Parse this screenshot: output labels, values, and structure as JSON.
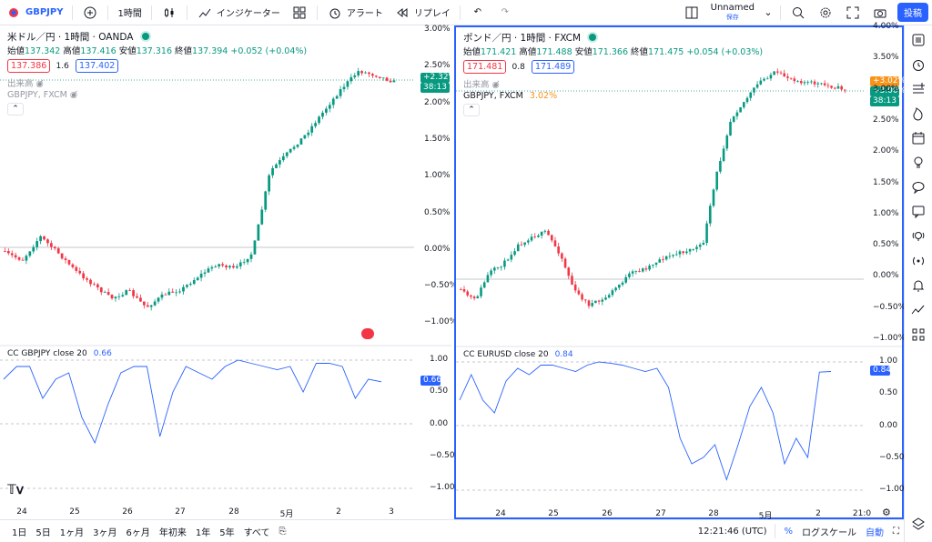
{
  "toolbar": {
    "symbol": "GBPJPY",
    "interval": "1時間",
    "indicators": "インジケーター",
    "alert": "アラート",
    "replay": "リプレイ",
    "layout_name": "Unnamed",
    "layout_saved": "保存",
    "publish": "投稿"
  },
  "left": {
    "title": "米ドル／円 · 1時間 · OANDA",
    "o_lbl": "始値",
    "o": "137.342",
    "h_lbl": "高値",
    "h": "137.416",
    "l_lbl": "安値",
    "l": "137.316",
    "c_lbl": "終値",
    "c": "137.394",
    "chg": "+0.052 (+0.04%)",
    "bid": "137.386",
    "spread": "1.6",
    "ask": "137.402",
    "volume": "出来高",
    "compare": "GBPJPY, FXCM",
    "price_tag": "+2.32%",
    "price_timer": "38:13",
    "yticks": [
      "3.00%",
      "2.50%",
      "2.00%",
      "1.50%",
      "1.00%",
      "0.50%",
      "0.00%",
      "−0.50%",
      "−1.00%"
    ],
    "ind_title": "CC GBPJPY close 20",
    "ind_val": "0.66",
    "ind_ticks": [
      "1.00",
      "0.50",
      "0.00",
      "−0.50",
      "−1.00"
    ],
    "ind_tag": "0.66",
    "xticks": [
      "24",
      "25",
      "26",
      "27",
      "28",
      "5月",
      "2",
      "3"
    ]
  },
  "right": {
    "title": "ポンド／円 · 1時間 · FXCM",
    "o_lbl": "始値",
    "o": "171.421",
    "h_lbl": "高値",
    "h": "171.488",
    "l_lbl": "安値",
    "l": "171.366",
    "c_lbl": "終値",
    "c": "171.475",
    "chg": "+0.054 (+0.03%)",
    "bid": "171.481",
    "spread": "0.8",
    "ask": "171.489",
    "volume": "出来高",
    "compare": "GBPJPY, FXCM",
    "compare_val": "3.02%",
    "price_tag1": "+3.02%",
    "price_tag2": "+3.00%",
    "price_timer": "38:13",
    "yticks": [
      "4.00%",
      "3.50%",
      "3.00%",
      "2.50%",
      "2.00%",
      "1.50%",
      "1.00%",
      "0.50%",
      "0.00%",
      "−0.50%",
      "−1.00%"
    ],
    "ind_title": "CC EURUSD close 20",
    "ind_val": "0.84",
    "ind_ticks": [
      "1.00",
      "0.50",
      "0.00",
      "−0.50",
      "−1.00"
    ],
    "ind_tag": "0.84",
    "xticks": [
      "24",
      "25",
      "26",
      "27",
      "28",
      "5月",
      "2",
      "21:0"
    ]
  },
  "bottom": {
    "ranges": [
      "1日",
      "5日",
      "1ヶ月",
      "3ヶ月",
      "6ヶ月",
      "年初来",
      "1年",
      "5年",
      "すべて"
    ],
    "time": "12:21:46 (UTC)",
    "percent": "%",
    "log": "ログスケール",
    "auto": "自動"
  },
  "colors": {
    "up": "#089981",
    "down": "#f23645",
    "accent": "#2962ff",
    "orange": "#f7931a"
  }
}
